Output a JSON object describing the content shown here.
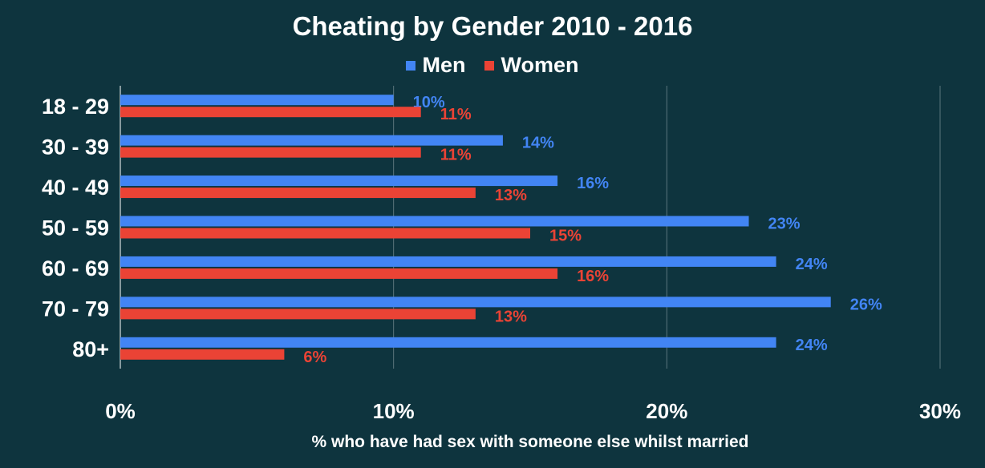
{
  "chart_data": {
    "type": "bar",
    "orientation": "horizontal",
    "title": "Cheating by Gender 2010 - 2016",
    "xlabel": "% who have had sex with someone else whilst married",
    "ylabel": "",
    "categories": [
      "18 - 29",
      "30 - 39",
      "40 - 49",
      "50 - 59",
      "60 - 69",
      "70 - 79",
      "80+"
    ],
    "series": [
      {
        "name": "Men",
        "color": "#4285f4",
        "values": [
          10,
          14,
          16,
          23,
          24,
          26,
          24
        ],
        "labels": [
          "10%",
          "14%",
          "16%",
          "23%",
          "24%",
          "26%",
          "24%"
        ]
      },
      {
        "name": "Women",
        "color": "#ea4335",
        "values": [
          11,
          11,
          13,
          15,
          16,
          13,
          6
        ],
        "labels": [
          "11%",
          "11%",
          "13%",
          "15%",
          "16%",
          "13%",
          "6%"
        ]
      }
    ],
    "xlim": [
      0,
      30
    ],
    "xticks": [
      0,
      10,
      20,
      30
    ],
    "xtick_labels": [
      "0%",
      "10%",
      "20%",
      "30%"
    ],
    "grid": true,
    "legend": "top-center",
    "colors": {
      "background": "#0e343e",
      "grid": "#5b767c",
      "text": "#ffffff"
    }
  }
}
